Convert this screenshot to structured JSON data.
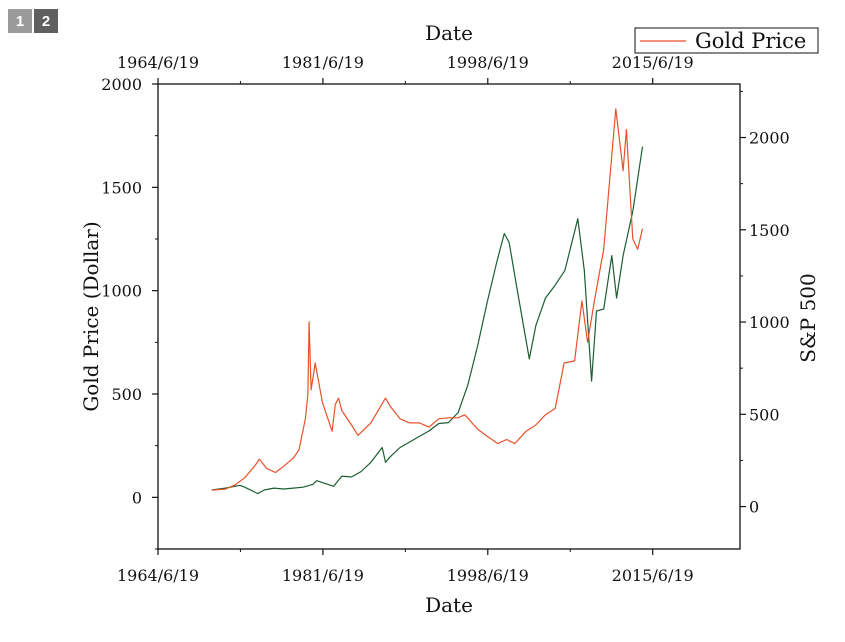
{
  "page_badges": [
    "1",
    "2"
  ],
  "chart_data": {
    "type": "line",
    "title": "",
    "xlabel_bottom": "Date",
    "xlabel_top": "Date",
    "ylabel_left": "Gold Price (Dollar)",
    "ylabel_right": "S&P 500",
    "xlim": [
      "1964-06-19",
      "2024-06-19"
    ],
    "x_ticks": [
      "1964/6/19",
      "1981/6/19",
      "1998/6/19",
      "2015/6/19"
    ],
    "x_tick_dates": [
      "1964-06-19",
      "1981-06-19",
      "1998-06-19",
      "2015-06-19"
    ],
    "ylim_left": [
      -250,
      2000
    ],
    "y_ticks_left": [
      "0",
      "500",
      "1000",
      "1500",
      "2000"
    ],
    "ylim_right": [
      -230,
      2290
    ],
    "y_ticks_right": [
      "0",
      "500",
      "1000",
      "1500",
      "2000"
    ],
    "legend": {
      "position": "top-right",
      "entries": [
        "Gold Price"
      ]
    },
    "grid": false,
    "series": [
      {
        "name": "Gold Price",
        "axis": "left",
        "color": "#e8512a",
        "x": [
          "1970-01-01",
          "1971-06-01",
          "1972-06-01",
          "1973-06-01",
          "1974-06-01",
          "1974-12-01",
          "1975-09-01",
          "1976-08-01",
          "1977-06-01",
          "1978-06-01",
          "1979-01-01",
          "1979-09-01",
          "1979-12-01",
          "1980-01-18",
          "1980-04-01",
          "1980-09-01",
          "1981-06-01",
          "1982-06-01",
          "1982-10-01",
          "1983-02-01",
          "1983-06-01",
          "1984-06-01",
          "1985-02-01",
          "1986-06-01",
          "1987-12-01",
          "1988-06-01",
          "1989-06-01",
          "1990-06-01",
          "1991-06-01",
          "1992-06-01",
          "1993-06-01",
          "1994-06-01",
          "1995-06-01",
          "1996-02-01",
          "1997-06-01",
          "1998-06-01",
          "1999-07-01",
          "2000-06-01",
          "2001-04-01",
          "2002-06-01",
          "2003-06-01",
          "2004-06-01",
          "2005-06-01",
          "2006-05-01",
          "2007-06-01",
          "2008-03-01",
          "2008-10-01",
          "2009-06-01",
          "2010-06-01",
          "2011-09-01",
          "2012-06-01",
          "2012-10-01",
          "2013-06-01",
          "2013-12-01",
          "2014-06-01"
        ],
        "y": [
          35,
          40,
          60,
          95,
          150,
          185,
          140,
          120,
          150,
          190,
          230,
          380,
          500,
          850,
          520,
          650,
          460,
          320,
          450,
          480,
          420,
          350,
          300,
          360,
          480,
          440,
          380,
          360,
          360,
          340,
          380,
          385,
          385,
          400,
          330,
          295,
          260,
          280,
          260,
          320,
          350,
          400,
          430,
          650,
          660,
          950,
          750,
          940,
          1200,
          1880,
          1580,
          1780,
          1250,
          1200,
          1300
        ]
      },
      {
        "name": "S&P 500",
        "axis": "right",
        "color": "#1b5e32",
        "x": [
          "1970-01-01",
          "1971-06-01",
          "1972-12-01",
          "1973-06-01",
          "1974-10-01",
          "1975-06-01",
          "1976-06-01",
          "1977-06-01",
          "1978-06-01",
          "1979-06-01",
          "1980-06-01",
          "1980-11-01",
          "1981-06-01",
          "1982-08-01",
          "1983-06-01",
          "1984-06-01",
          "1985-06-01",
          "1986-06-01",
          "1987-08-01",
          "1987-12-01",
          "1988-06-01",
          "1989-06-01",
          "1990-06-01",
          "1991-06-01",
          "1992-06-01",
          "1993-06-01",
          "1994-06-01",
          "1995-06-01",
          "1996-06-01",
          "1997-06-01",
          "1998-06-01",
          "1999-06-01",
          "2000-03-01",
          "2000-09-01",
          "2001-06-01",
          "2002-10-01",
          "2003-06-01",
          "2004-06-01",
          "2005-06-01",
          "2006-06-01",
          "2007-10-01",
          "2008-06-01",
          "2009-03-01",
          "2009-09-01",
          "2010-06-01",
          "2011-04-01",
          "2011-10-01",
          "2012-06-01",
          "2013-06-01",
          "2014-06-01"
        ],
        "y": [
          90,
          100,
          115,
          105,
          70,
          90,
          100,
          95,
          100,
          105,
          120,
          140,
          130,
          110,
          165,
          160,
          190,
          240,
          320,
          240,
          270,
          320,
          350,
          380,
          410,
          450,
          455,
          510,
          660,
          870,
          1110,
          1330,
          1480,
          1430,
          1200,
          800,
          980,
          1130,
          1200,
          1280,
          1560,
          1280,
          680,
          1060,
          1070,
          1360,
          1130,
          1360,
          1600,
          1950
        ]
      }
    ]
  }
}
